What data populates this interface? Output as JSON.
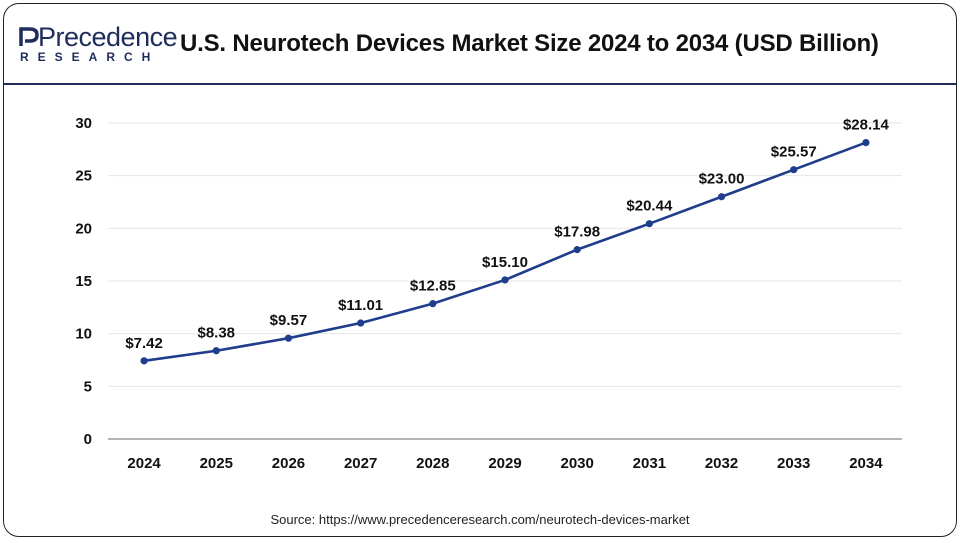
{
  "header": {
    "logo_word": "Precedence",
    "logo_sub": "RESEARCH",
    "title": "U.S. Neurotech Devices Market Size 2024 to 2034 (USD Billion)"
  },
  "source": "Source: https://www.precedenceresearch.com/neurotech-devices-market",
  "colors": {
    "line": "#1f3d8c",
    "brand": "#1f2d5c",
    "grid": "#e6e6e6"
  },
  "chart_data": {
    "type": "line",
    "title": "U.S. Neurotech Devices Market Size 2024 to 2034 (USD Billion)",
    "xlabel": "",
    "ylabel": "",
    "categories": [
      "2024",
      "2025",
      "2026",
      "2027",
      "2028",
      "2029",
      "2030",
      "2031",
      "2032",
      "2033",
      "2034"
    ],
    "series": [
      {
        "name": "U.S. Neurotech Devices Market Size",
        "values": [
          7.42,
          8.38,
          9.57,
          11.01,
          12.85,
          15.1,
          17.98,
          20.44,
          23.0,
          25.57,
          28.14
        ],
        "labels": [
          "$7.42",
          "$8.38",
          "$9.57",
          "$11.01",
          "$12.85",
          "$15.10",
          "$17.98",
          "$20.44",
          "$23.00",
          "$25.57",
          "$28.14"
        ]
      }
    ],
    "yticks": [
      0,
      5,
      10,
      15,
      20,
      25,
      30
    ],
    "ylim": [
      0,
      30
    ],
    "grid": true,
    "legend": "none"
  }
}
